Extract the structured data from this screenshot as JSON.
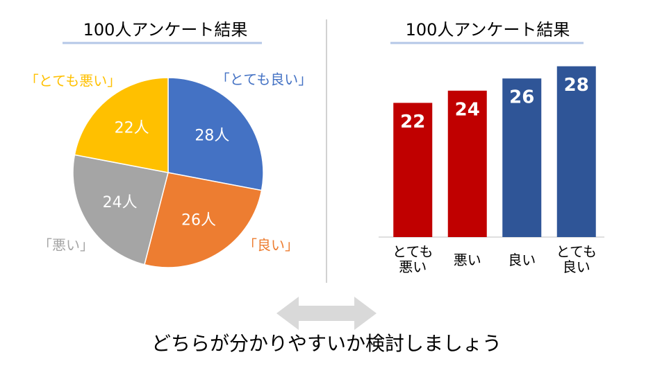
{
  "chart_data": [
    {
      "type": "pie",
      "title": "100人アンケート結果",
      "categories": [
        "「とても良い」",
        "「良い」",
        "「悪い」",
        "「とても悪い」"
      ],
      "values": [
        28,
        26,
        24,
        22
      ],
      "value_labels": [
        "28人",
        "26人",
        "24人",
        "22人"
      ],
      "colors": [
        "#4472c4",
        "#ed7d31",
        "#a5a5a5",
        "#ffc000"
      ]
    },
    {
      "type": "bar",
      "title": "100人アンケート結果",
      "categories": [
        "とても悪い",
        "悪い",
        "良い",
        "とても良い"
      ],
      "values": [
        22,
        24,
        26,
        28
      ],
      "colors": [
        "#c00000",
        "#c00000",
        "#2f5597",
        "#2f5597"
      ]
    }
  ],
  "caption": "どちらが分かりやすいか検討しましょう"
}
